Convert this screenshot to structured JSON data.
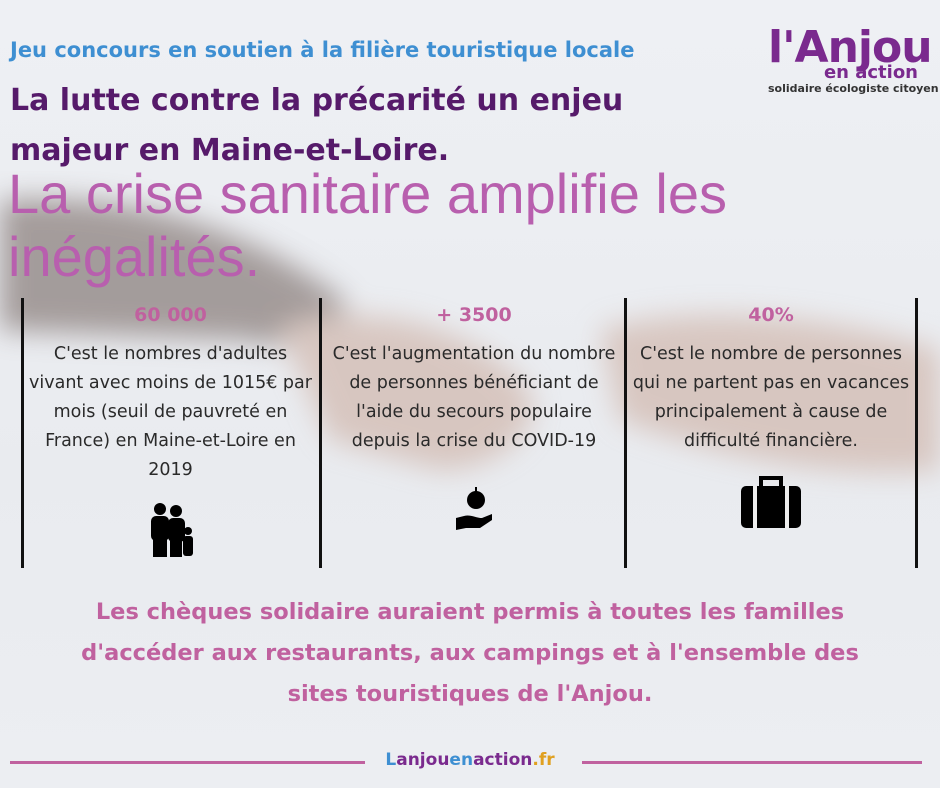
{
  "header": {
    "subtitle": "Jeu concours en soutien à la filière touristique locale",
    "title": "La lutte contre la précarité un enjeu majeur en Maine-et-Loire.",
    "headline": "La crise sanitaire amplifie les inégalités."
  },
  "logo": {
    "name": "l'Anjou",
    "tagline": "en action",
    "motto": "solidaire écologiste citoyen"
  },
  "stats": [
    {
      "value": "60 000",
      "text": "C'est le nombres d'adultes vivant avec moins de 1015€ par mois (seuil de pauvreté en France) en Maine-et-Loire en 2019"
    },
    {
      "value": "+ 3500",
      "text": "C'est l'augmentation du nombre de personnes bénéficiant de l'aide du secours populaire depuis la crise du COVID-19"
    },
    {
      "value": "40%",
      "text": "C'est le nombre de personnes qui ne partent pas en vacances principalement à cause de difficulté financière."
    }
  ],
  "conclusion": "Les chèques solidaire auraient permis à toutes les familles d'accéder aux restaurants, aux campings et à l'ensemble des sites touristiques de l'Anjou.",
  "footer": {
    "url_parts": [
      "L",
      "anjou",
      "en",
      "action",
      ".fr"
    ]
  }
}
